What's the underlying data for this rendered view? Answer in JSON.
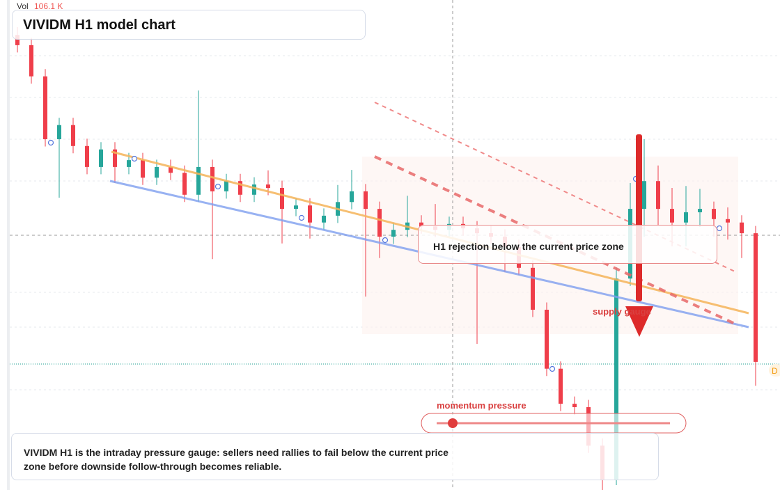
{
  "chart_data": {
    "type": "candlestick",
    "title": "VIVIDM H1 model chart",
    "volume_label": "Vol",
    "volume_value": "106.1 K",
    "ylim": [
      0,
      100
    ],
    "colors": {
      "up": "#26a69a",
      "down": "#ef3e4a"
    },
    "open": [
      93.4,
      91.3,
      84.9,
      72,
      74.9,
      70.6,
      66.3,
      69.9,
      66.3,
      67.7,
      64.1,
      66.3,
      65.1,
      60.6,
      66.3,
      61.3,
      63.4,
      60.6,
      62.7,
      62,
      57.7,
      58.4,
      54.9,
      56.3,
      59.1,
      61.3,
      57.7,
      52,
      53.4,
      54.9,
      54.1,
      53.4,
      54.6,
      53.7,
      52.7,
      52,
      49.9,
      45.6,
      37,
      24.9,
      17.7,
      17,
      9.1,
      2,
      43.4,
      57.7,
      63.4,
      57.7,
      54.9,
      57,
      57.7,
      55.6,
      54.9,
      52.7
    ],
    "high": [
      95,
      92.8,
      86.4,
      76.4,
      76.4,
      72.1,
      71.4,
      71.4,
      69.2,
      69.2,
      67.8,
      67.8,
      66.6,
      82,
      67.8,
      64.9,
      64.9,
      64.2,
      65.6,
      63.5,
      59.9,
      59.9,
      57.8,
      62.6,
      65.7,
      62.8,
      59.2,
      54.9,
      60.4,
      56.4,
      58.7,
      56.1,
      56.1,
      55.2,
      54.2,
      53.5,
      51.4,
      47.1,
      38.5,
      26.4,
      19.2,
      18.5,
      10.6,
      45.7,
      63,
      72,
      66.6,
      62,
      62.4,
      61.8,
      59.2,
      58,
      56.4,
      54.2
    ],
    "low": [
      89.8,
      83.4,
      70.5,
      60,
      69.1,
      64.8,
      64.8,
      63,
      64.8,
      62.6,
      62.6,
      63.6,
      59.1,
      59.1,
      47.4,
      59.8,
      59.1,
      59.1,
      60.5,
      50.6,
      56.2,
      51.6,
      53.4,
      54.8,
      57.6,
      39.7,
      47.6,
      50.5,
      51.9,
      52.6,
      51.9,
      51.9,
      52.2,
      30,
      50.5,
      44.7,
      44.1,
      35.5,
      23.4,
      16.2,
      15.5,
      7.6,
      0,
      1,
      41.9,
      52,
      54.2,
      50,
      50,
      54,
      52,
      51.4,
      47.6,
      21.4
    ],
    "close": [
      91.3,
      84.9,
      72,
      74.9,
      70.6,
      66.3,
      69.9,
      66.3,
      67.7,
      64.1,
      66.3,
      65.1,
      60.6,
      66.3,
      61.3,
      63.4,
      60.6,
      62.7,
      62,
      57.7,
      58.4,
      54.9,
      56.3,
      59.1,
      61.3,
      57.7,
      52,
      53.4,
      54.9,
      54.1,
      53.4,
      54.6,
      53.7,
      52.7,
      52,
      49.9,
      45.6,
      37,
      24.9,
      17.7,
      17,
      9.1,
      2,
      43.4,
      57.7,
      63.4,
      57.7,
      54.9,
      57,
      57.7,
      55.6,
      54.9,
      52.7,
      26.3
    ],
    "annotations": {
      "zone": "H1 rejection below the current price zone",
      "supply": "supply gauge",
      "gauge": "momentum pressure",
      "badge": "D",
      "note": "VIVIDM H1 is the intraday pressure gauge: sellers need rallies to fail below the current price zone before downside follow-through becomes reliable."
    }
  }
}
